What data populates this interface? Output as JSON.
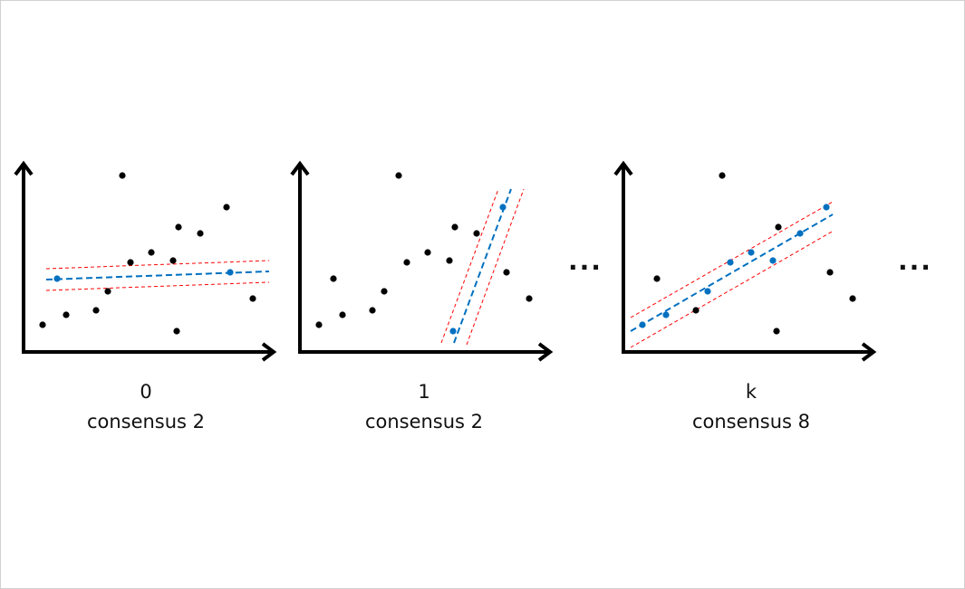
{
  "panels": [
    {
      "iteration": "0",
      "consensus_label": "consensus 2",
      "consensus": 2
    },
    {
      "iteration": "1",
      "consensus_label": "consensus 2",
      "consensus": 2
    },
    {
      "iteration": "k",
      "consensus_label": "consensus 8",
      "consensus": 8
    }
  ],
  "ellipsis": "···",
  "colors": {
    "points": "#000000",
    "inliers": "#0070c0",
    "model_line": "#0070c0",
    "threshold_lines": "#ff0000",
    "axes": "#000000"
  }
}
